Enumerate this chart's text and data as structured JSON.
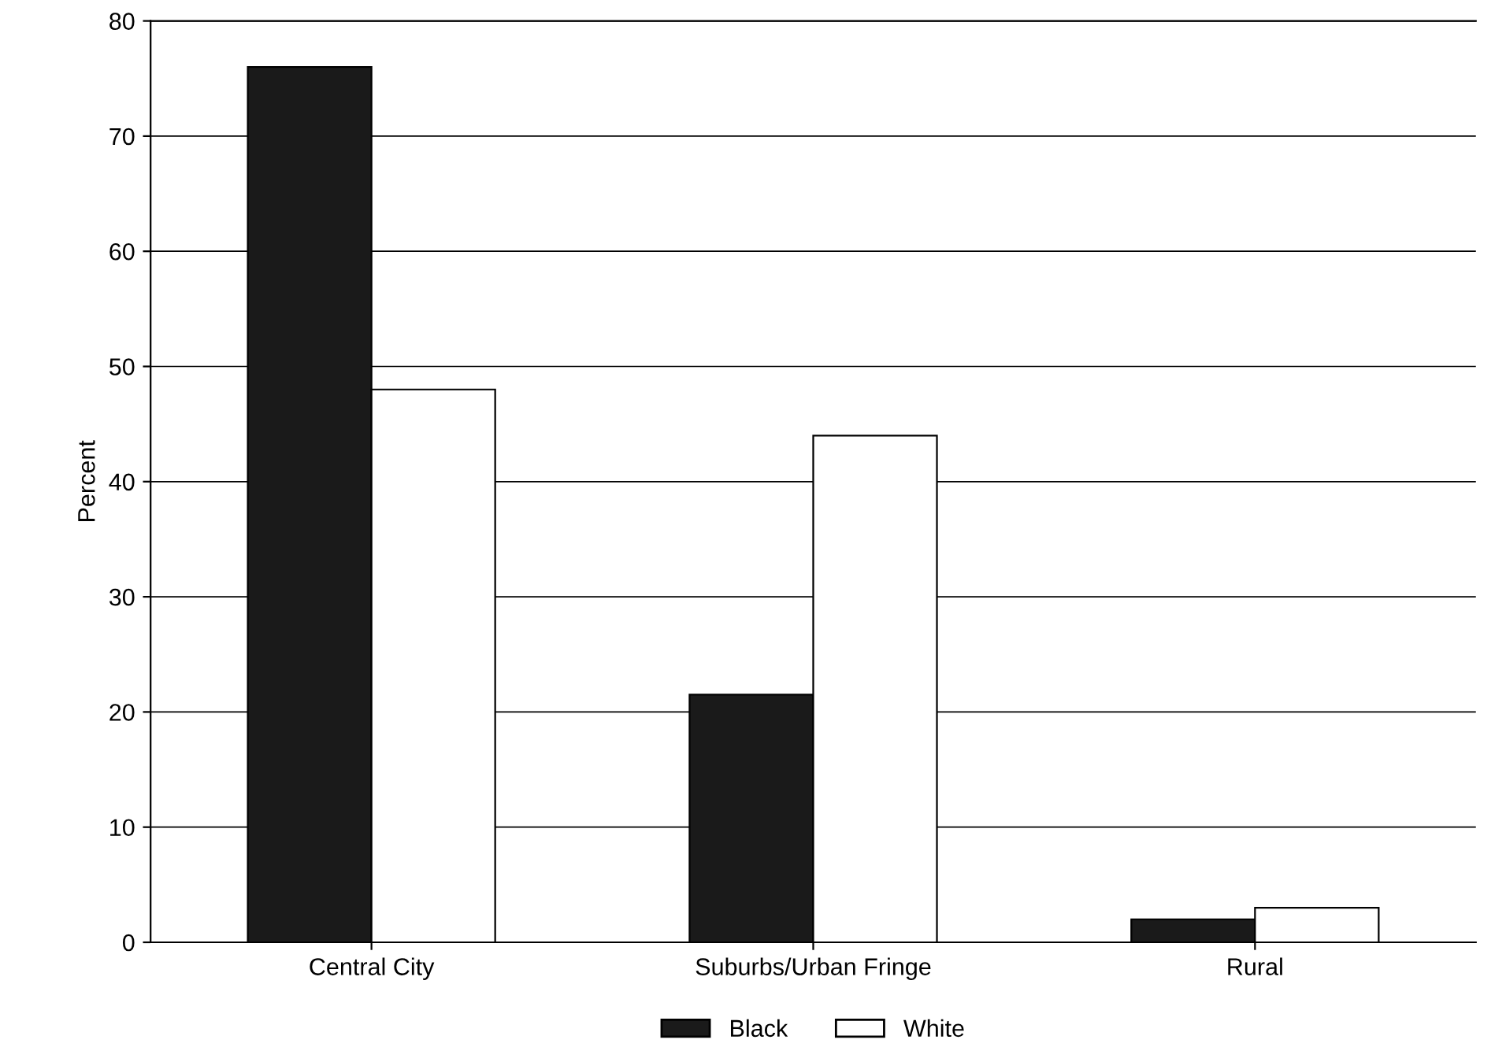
{
  "chart_data": {
    "type": "bar",
    "ylabel": "Percent",
    "categories": [
      "Central City",
      "Suburbs/Urban Fringe",
      "Rural"
    ],
    "series": [
      {
        "name": "Black",
        "color": "#1a1a1a",
        "values": [
          76,
          21.5,
          2
        ]
      },
      {
        "name": "White",
        "color": "#ffffff",
        "values": [
          48,
          44,
          3
        ]
      }
    ],
    "ylim": [
      0,
      80
    ],
    "yticks": [
      0,
      10,
      20,
      30,
      40,
      50,
      60,
      70,
      80
    ],
    "grid": "y",
    "legend": "bottom"
  }
}
